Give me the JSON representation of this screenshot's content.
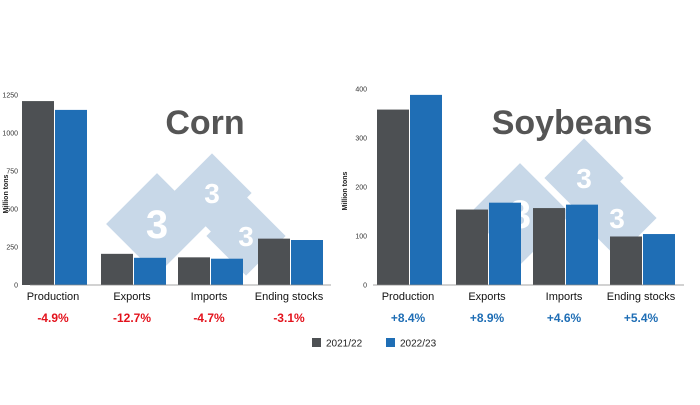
{
  "colors": {
    "series_2021": "#4d5053",
    "series_2022": "#1f6eb5",
    "negative": "#e3121c",
    "positive": "#1f6eb5",
    "watermark": "#c8d8e8"
  },
  "watermark": {
    "glyph": "3"
  },
  "legend": {
    "position": "bottom-center"
  },
  "chart_data": [
    {
      "type": "bar",
      "title": "Corn",
      "ylabel": "Million tons",
      "ylim": [
        0,
        1250
      ],
      "yticks": [
        0,
        250,
        500,
        750,
        1000,
        1250
      ],
      "grid": false,
      "categories": [
        "Production",
        "Exports",
        "Imports",
        "Ending stocks"
      ],
      "series": [
        {
          "name": "2021/22",
          "values": [
            1210,
            205,
            182,
            305
          ]
        },
        {
          "name": "2022/23",
          "values": [
            1152,
            179,
            173,
            296
          ]
        }
      ],
      "changes": [
        "-4.9%",
        "-12.7%",
        "-4.7%",
        "-3.1%"
      ]
    },
    {
      "type": "bar",
      "title": "Soybeans",
      "ylabel": "Million tons",
      "ylim": [
        0,
        400
      ],
      "yticks": [
        0,
        100,
        200,
        300,
        400
      ],
      "grid": false,
      "categories": [
        "Production",
        "Exports",
        "Imports",
        "Ending stocks"
      ],
      "series": [
        {
          "name": "2021/22",
          "values": [
            358,
            154,
            157,
            99
          ]
        },
        {
          "name": "2022/23",
          "values": [
            388,
            168,
            164,
            104
          ]
        }
      ],
      "changes": [
        "+8.4%",
        "+8.9%",
        "+4.6%",
        "+5.4%"
      ]
    }
  ]
}
